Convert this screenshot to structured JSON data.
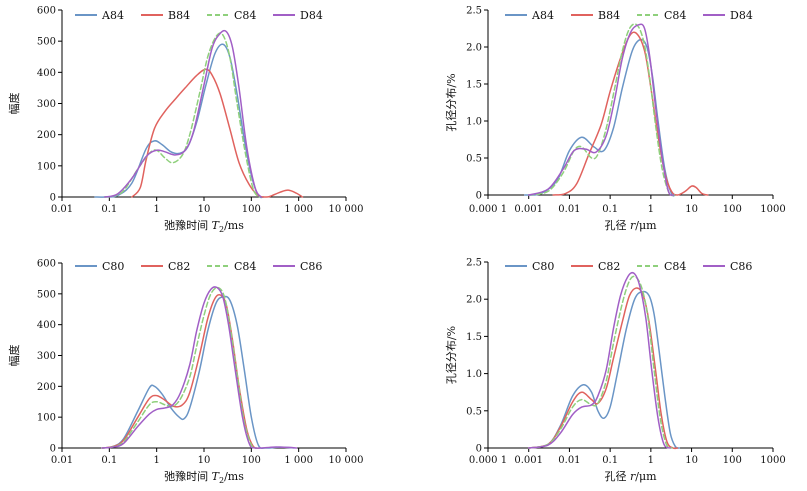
{
  "chart_data": [
    {
      "type": "line",
      "xscale": "log",
      "xlabel_prefix": "弛豫时间 ",
      "xlabel_var": "T",
      "xlabel_sub": "2",
      "xlabel_unit": "/ms",
      "ylabel": "幅度",
      "xlim": [
        0.01,
        10000
      ],
      "ylim": [
        0,
        600
      ],
      "xticks": [
        0.01,
        0.1,
        1,
        10,
        100,
        1000,
        10000
      ],
      "xtick_labels": [
        "0.01",
        "0.1",
        "1",
        "10",
        "100",
        "1 000",
        "10 000"
      ],
      "yticks": [
        0,
        100,
        200,
        300,
        400,
        500,
        600
      ],
      "ytick_labels": [
        "0",
        "100",
        "200",
        "300",
        "400",
        "500",
        "600"
      ],
      "legend": "top-left",
      "series": [
        {
          "name": "A84",
          "color": "#6a95c6",
          "dash": "solid",
          "x": [
            0.05,
            0.08,
            0.15,
            0.3,
            0.6,
            0.9,
            1.3,
            2,
            3,
            4.5,
            7,
            11,
            17,
            25,
            35,
            50,
            70,
            100,
            140,
            180
          ],
          "y": [
            0,
            0,
            5,
            45,
            155,
            180,
            168,
            145,
            140,
            160,
            240,
            360,
            460,
            490,
            450,
            330,
            190,
            70,
            5,
            0
          ]
        },
        {
          "name": "B84",
          "color": "#e0625e",
          "dash": "solid",
          "x": [
            0.3,
            0.45,
            0.6,
            0.9,
            1.5,
            2.5,
            4,
            7,
            11,
            15,
            22,
            35,
            55,
            90,
            140,
            200,
            250,
            400,
            600,
            900,
            1200
          ],
          "y": [
            0,
            30,
            120,
            220,
            275,
            315,
            350,
            390,
            410,
            390,
            330,
            220,
            110,
            40,
            5,
            0,
            2,
            15,
            22,
            12,
            0
          ]
        },
        {
          "name": "C84",
          "color": "#8fd07c",
          "dash": "dash",
          "x": [
            0.08,
            0.12,
            0.2,
            0.4,
            0.7,
            1,
            1.5,
            2.2,
            3.5,
            5,
            8,
            12,
            18,
            25,
            35,
            50,
            75,
            110,
            150
          ],
          "y": [
            0,
            3,
            20,
            90,
            140,
            150,
            125,
            110,
            135,
            200,
            330,
            450,
            515,
            520,
            450,
            300,
            140,
            25,
            0
          ]
        },
        {
          "name": "D84",
          "color": "#a15fc6",
          "dash": "solid",
          "x": [
            0.08,
            0.15,
            0.3,
            0.6,
            1,
            1.5,
            2.5,
            4,
            6,
            10,
            15,
            22,
            30,
            40,
            55,
            80,
            120,
            160
          ],
          "y": [
            0,
            10,
            60,
            130,
            150,
            145,
            135,
            150,
            210,
            360,
            480,
            525,
            530,
            480,
            350,
            160,
            30,
            0
          ]
        }
      ]
    },
    {
      "type": "line",
      "xscale": "log",
      "xlabel_prefix": "孔径 ",
      "xlabel_var": "r",
      "xlabel_sub": "",
      "xlabel_unit": "/μm",
      "ylabel": "孔径分布/%",
      "xlim": [
        0.0001,
        1000
      ],
      "ylim": [
        0,
        2.5
      ],
      "xticks": [
        0.0001,
        0.001,
        0.01,
        0.1,
        1,
        10,
        100,
        1000
      ],
      "xtick_labels": [
        "0.000 1",
        "0.001",
        "0.01",
        "0.1",
        "1",
        "10",
        "100",
        "1000"
      ],
      "yticks": [
        0,
        0.5,
        1.0,
        1.5,
        2.0,
        2.5
      ],
      "ytick_labels": [
        "0",
        "0.5",
        "1.0",
        "1.5",
        "2.0",
        "2.5"
      ],
      "legend": "top-left",
      "series": [
        {
          "name": "A84",
          "color": "#6a95c6",
          "dash": "solid",
          "x": [
            0.0008,
            0.002,
            0.005,
            0.01,
            0.02,
            0.04,
            0.07,
            0.12,
            0.2,
            0.35,
            0.55,
            0.8,
            1.1,
            1.5,
            2.2,
            3.2,
            4
          ],
          "y": [
            0,
            0.02,
            0.2,
            0.6,
            0.78,
            0.65,
            0.6,
            0.9,
            1.45,
            1.95,
            2.1,
            2.0,
            1.6,
            1.0,
            0.35,
            0.02,
            0
          ]
        },
        {
          "name": "B84",
          "color": "#e0625e",
          "dash": "solid",
          "x": [
            0.004,
            0.008,
            0.015,
            0.03,
            0.06,
            0.1,
            0.18,
            0.3,
            0.45,
            0.7,
            1,
            1.5,
            2.2,
            3.2,
            4.5,
            7,
            10,
            13,
            18,
            25
          ],
          "y": [
            0,
            0.02,
            0.15,
            0.55,
            0.95,
            1.4,
            1.85,
            2.15,
            2.18,
            1.95,
            1.45,
            0.8,
            0.3,
            0.05,
            0,
            0.05,
            0.12,
            0.1,
            0.02,
            0
          ]
        },
        {
          "name": "C84",
          "color": "#8fd07c",
          "dash": "dash",
          "x": [
            0.001,
            0.003,
            0.007,
            0.013,
            0.02,
            0.035,
            0.05,
            0.08,
            0.13,
            0.2,
            0.3,
            0.45,
            0.65,
            0.9,
            1.3,
            1.9,
            2.8,
            3.8
          ],
          "y": [
            0,
            0.05,
            0.3,
            0.6,
            0.65,
            0.5,
            0.55,
            0.9,
            1.45,
            1.95,
            2.25,
            2.3,
            2.1,
            1.65,
            0.95,
            0.35,
            0.03,
            0
          ]
        },
        {
          "name": "D84",
          "color": "#a15fc6",
          "dash": "solid",
          "x": [
            0.001,
            0.003,
            0.007,
            0.013,
            0.025,
            0.045,
            0.08,
            0.13,
            0.2,
            0.32,
            0.5,
            0.7,
            0.95,
            1.3,
            1.9,
            2.7,
            3.6
          ],
          "y": [
            0,
            0.08,
            0.35,
            0.6,
            0.62,
            0.58,
            0.8,
            1.3,
            1.85,
            2.2,
            2.3,
            2.25,
            1.85,
            1.2,
            0.5,
            0.05,
            0
          ]
        }
      ]
    },
    {
      "type": "line",
      "xscale": "log",
      "xlabel_prefix": "弛豫时间 ",
      "xlabel_var": "T",
      "xlabel_sub": "2",
      "xlabel_unit": "/ms",
      "ylabel": "幅度",
      "xlim": [
        0.01,
        10000
      ],
      "ylim": [
        0,
        600
      ],
      "xticks": [
        0.01,
        0.1,
        1,
        10,
        100,
        1000,
        10000
      ],
      "xtick_labels": [
        "0.01",
        "0.1",
        "1",
        "10",
        "100",
        "1 000",
        "10 000"
      ],
      "yticks": [
        0,
        100,
        200,
        300,
        400,
        500,
        600
      ],
      "ytick_labels": [
        "0",
        "100",
        "200",
        "300",
        "400",
        "500",
        "600"
      ],
      "legend": "top-left",
      "series": [
        {
          "name": "C80",
          "color": "#6a95c6",
          "dash": "solid",
          "x": [
            0.07,
            0.12,
            0.2,
            0.4,
            0.7,
            0.9,
            1.3,
            2,
            3,
            3.8,
            5,
            8,
            12,
            18,
            25,
            35,
            50,
            70,
            100,
            140,
            200,
            400,
            800
          ],
          "y": [
            0,
            5,
            30,
            120,
            195,
            200,
            175,
            130,
            100,
            95,
            130,
            250,
            380,
            470,
            490,
            480,
            400,
            260,
            100,
            10,
            0,
            3,
            0
          ]
        },
        {
          "name": "C82",
          "color": "#e0625e",
          "dash": "solid",
          "x": [
            0.07,
            0.12,
            0.2,
            0.4,
            0.7,
            1,
            1.5,
            2.3,
            3.5,
            5,
            8,
            12,
            17,
            23,
            30,
            40,
            55,
            80,
            110,
            150
          ],
          "y": [
            0,
            5,
            25,
            100,
            160,
            170,
            155,
            135,
            140,
            180,
            300,
            420,
            485,
            495,
            460,
            350,
            200,
            60,
            5,
            0
          ]
        },
        {
          "name": "C84",
          "color": "#8fd07c",
          "dash": "dash",
          "x": [
            0.07,
            0.12,
            0.2,
            0.4,
            0.7,
            1,
            1.5,
            2.2,
            3.2,
            5,
            7,
            10,
            14,
            20,
            27,
            35,
            50,
            70,
            100,
            130
          ],
          "y": [
            0,
            4,
            20,
            85,
            140,
            150,
            140,
            135,
            160,
            230,
            330,
            430,
            500,
            520,
            490,
            400,
            240,
            90,
            10,
            0
          ]
        },
        {
          "name": "C86",
          "color": "#a15fc6",
          "dash": "solid",
          "x": [
            0.07,
            0.12,
            0.2,
            0.4,
            0.7,
            1,
            1.5,
            2.2,
            3.2,
            5,
            7,
            10,
            14,
            19,
            25,
            33,
            45,
            65,
            90,
            120,
            300,
            600,
            900
          ],
          "y": [
            0,
            3,
            15,
            70,
            110,
            125,
            130,
            140,
            180,
            270,
            380,
            470,
            515,
            520,
            490,
            400,
            260,
            100,
            15,
            0,
            3,
            2,
            0
          ]
        }
      ]
    },
    {
      "type": "line",
      "xscale": "log",
      "xlabel_prefix": "孔径 ",
      "xlabel_var": "r",
      "xlabel_sub": "",
      "xlabel_unit": "/μm",
      "ylabel": "孔径分布/%",
      "xlim": [
        0.0001,
        1000
      ],
      "ylim": [
        0,
        2.5
      ],
      "xticks": [
        0.0001,
        0.001,
        0.01,
        0.1,
        1,
        10,
        100,
        1000
      ],
      "xtick_labels": [
        "0.000 1",
        "0.001",
        "0.01",
        "0.1",
        "1",
        "10",
        "100",
        "1000"
      ],
      "yticks": [
        0,
        0.5,
        1.0,
        1.5,
        2.0,
        2.5
      ],
      "ytick_labels": [
        "0",
        "0.5",
        "1.0",
        "1.5",
        "2.0",
        "2.5"
      ],
      "legend": "top-left",
      "series": [
        {
          "name": "C80",
          "color": "#6a95c6",
          "dash": "solid",
          "x": [
            0.001,
            0.003,
            0.006,
            0.012,
            0.022,
            0.035,
            0.05,
            0.07,
            0.1,
            0.15,
            0.25,
            0.4,
            0.6,
            0.9,
            1.2,
            1.6,
            2.2,
            3,
            4,
            5
          ],
          "y": [
            0,
            0.05,
            0.3,
            0.7,
            0.85,
            0.75,
            0.5,
            0.4,
            0.55,
            1.0,
            1.6,
            2.0,
            2.1,
            2.05,
            1.8,
            1.3,
            0.7,
            0.2,
            0.02,
            0
          ]
        },
        {
          "name": "C82",
          "color": "#e0625e",
          "dash": "solid",
          "x": [
            0.001,
            0.003,
            0.006,
            0.012,
            0.02,
            0.035,
            0.05,
            0.08,
            0.12,
            0.2,
            0.3,
            0.45,
            0.65,
            0.9,
            1.3,
            1.8,
            2.5,
            3.5,
            4.5
          ],
          "y": [
            0,
            0.05,
            0.28,
            0.62,
            0.75,
            0.65,
            0.6,
            0.8,
            1.2,
            1.7,
            2.05,
            2.15,
            2.05,
            1.7,
            1.05,
            0.45,
            0.08,
            0,
            0
          ]
        },
        {
          "name": "C84",
          "color": "#8fd07c",
          "dash": "dash",
          "x": [
            0.001,
            0.003,
            0.006,
            0.012,
            0.02,
            0.035,
            0.05,
            0.08,
            0.12,
            0.2,
            0.3,
            0.42,
            0.6,
            0.85,
            1.2,
            1.7,
            2.4,
            3.3
          ],
          "y": [
            0,
            0.05,
            0.25,
            0.55,
            0.65,
            0.58,
            0.6,
            0.9,
            1.4,
            1.95,
            2.25,
            2.3,
            2.15,
            1.75,
            1.05,
            0.4,
            0.05,
            0
          ]
        },
        {
          "name": "C86",
          "color": "#a15fc6",
          "dash": "solid",
          "x": [
            0.001,
            0.003,
            0.006,
            0.012,
            0.02,
            0.035,
            0.05,
            0.08,
            0.12,
            0.18,
            0.27,
            0.38,
            0.52,
            0.75,
            1.05,
            1.5,
            2.1,
            3
          ],
          "y": [
            0,
            0.04,
            0.2,
            0.45,
            0.55,
            0.58,
            0.7,
            1.05,
            1.6,
            2.05,
            2.3,
            2.35,
            2.2,
            1.75,
            1.05,
            0.4,
            0.05,
            0
          ]
        }
      ]
    }
  ]
}
